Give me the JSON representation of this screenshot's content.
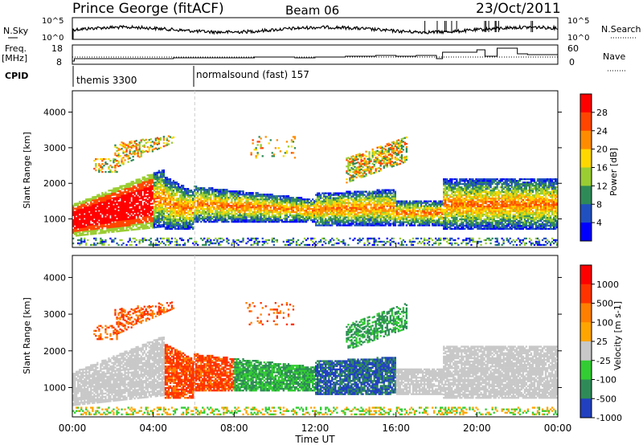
{
  "header": {
    "station": "Prince George (fitACF)",
    "beam": "Beam 06",
    "date": "23/Oct/2011"
  },
  "top_panels": {
    "nsky_label": "N.Sky",
    "nsky_ticks": [
      "10^5",
      "10^0"
    ],
    "nsearch_label": "N.Search",
    "nsearch_ticks": [
      "10^5",
      "10^0"
    ],
    "freq_label": "Freq.",
    "freq_unit": "[MHz]",
    "freq_ticks": [
      "18",
      "8"
    ],
    "nave_label": "Nave",
    "nave_ticks": [
      "60",
      "0"
    ],
    "cpid_label": "CPID",
    "cpid_modes": [
      {
        "name": "themis 3300",
        "start_hour": 0
      },
      {
        "name": "normalsound (fast) 157",
        "start_hour": 6
      }
    ]
  },
  "chart_data": [
    {
      "type": "heatmap",
      "name": "power",
      "ylabel": "Slant Range [km]",
      "yticks": [
        "4000",
        "3000",
        "2000",
        "1000"
      ],
      "ylim": [
        200,
        4600
      ],
      "xlim": [
        0,
        24
      ],
      "colorbar_label": "Power [dB]",
      "colorbar_ticks": [
        "28",
        "24",
        "20",
        "16",
        "12",
        "8",
        "4"
      ],
      "colors": [
        "#0000ff",
        "#2050c0",
        "#2e8b57",
        "#9acd32",
        "#ffd700",
        "#ff8c00",
        "#ff4500",
        "#ff0000"
      ]
    },
    {
      "type": "heatmap",
      "name": "velocity",
      "ylabel": "Slant Range [km]",
      "yticks": [
        "4000",
        "3000",
        "2000",
        "1000"
      ],
      "ylim": [
        200,
        4600
      ],
      "xlim": [
        0,
        24
      ],
      "xlabel": "Time UT",
      "xticks": [
        "00:00",
        "04:00",
        "08:00",
        "12:00",
        "16:00",
        "20:00",
        "00:00"
      ],
      "colorbar_label": "Velocity [m s-1]",
      "colorbar_ticks": [
        "1000",
        "500",
        "100",
        "25",
        "-25",
        "-100",
        "-500",
        "-1000"
      ],
      "colors": [
        "#2040c0",
        "#2e8b57",
        "#32cd32",
        "#c8c8c8",
        "#ffa500",
        "#ff7f00",
        "#ff3300",
        "#ff0000"
      ]
    }
  ]
}
